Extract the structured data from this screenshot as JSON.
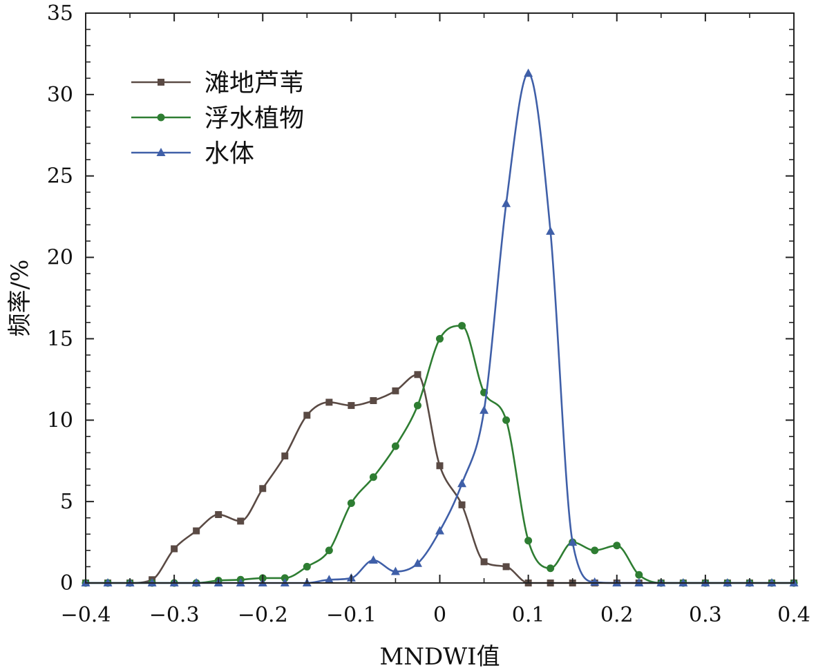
{
  "chart_data": {
    "type": "line",
    "xlabel": "MNDWI值",
    "ylabel": "频率/%",
    "xlim": [
      -0.4,
      0.4
    ],
    "ylim": [
      0,
      35
    ],
    "x_ticks": [
      -0.4,
      -0.3,
      -0.2,
      -0.1,
      0,
      0.1,
      0.2,
      0.3,
      0.4
    ],
    "x_tick_labels": [
      "−0.4",
      "−0.3",
      "−0.2",
      "−0.1",
      "0",
      "0.1",
      "0.2",
      "0.3",
      "0.4"
    ],
    "y_ticks": [
      0,
      5,
      10,
      15,
      20,
      25,
      30,
      35
    ],
    "y_tick_labels": [
      "0",
      "5",
      "10",
      "15",
      "20",
      "25",
      "30",
      "35"
    ],
    "grid": false,
    "legend_position": "top-left",
    "series": [
      {
        "name": "滩地芦苇",
        "color": "#5a4a44",
        "marker": "square",
        "points": [
          [
            -0.4,
            0
          ],
          [
            -0.375,
            0
          ],
          [
            -0.35,
            0
          ],
          [
            -0.325,
            0.2
          ],
          [
            -0.3,
            2.1
          ],
          [
            -0.275,
            3.2
          ],
          [
            -0.25,
            4.2
          ],
          [
            -0.225,
            3.8
          ],
          [
            -0.2,
            5.8
          ],
          [
            -0.175,
            7.8
          ],
          [
            -0.15,
            10.3
          ],
          [
            -0.125,
            11.1
          ],
          [
            -0.1,
            10.9
          ],
          [
            -0.075,
            11.2
          ],
          [
            -0.05,
            11.8
          ],
          [
            -0.025,
            12.8
          ],
          [
            0,
            7.2
          ],
          [
            0.025,
            4.8
          ],
          [
            0.05,
            1.3
          ],
          [
            0.075,
            1.0
          ],
          [
            0.1,
            0
          ],
          [
            0.125,
            0
          ],
          [
            0.15,
            0
          ],
          [
            0.175,
            0
          ],
          [
            0.2,
            0
          ],
          [
            0.225,
            0
          ],
          [
            0.25,
            0
          ],
          [
            0.275,
            0
          ],
          [
            0.3,
            0
          ],
          [
            0.325,
            0
          ],
          [
            0.35,
            0
          ],
          [
            0.375,
            0
          ],
          [
            0.4,
            0
          ]
        ]
      },
      {
        "name": "浮水植物",
        "color": "#2e7d32",
        "marker": "circle",
        "points": [
          [
            -0.4,
            0
          ],
          [
            -0.375,
            0
          ],
          [
            -0.35,
            0
          ],
          [
            -0.325,
            0
          ],
          [
            -0.3,
            0
          ],
          [
            -0.275,
            0
          ],
          [
            -0.25,
            0.15
          ],
          [
            -0.225,
            0.2
          ],
          [
            -0.2,
            0.3
          ],
          [
            -0.175,
            0.3
          ],
          [
            -0.15,
            1.0
          ],
          [
            -0.125,
            2.0
          ],
          [
            -0.1,
            4.9
          ],
          [
            -0.075,
            6.5
          ],
          [
            -0.05,
            8.4
          ],
          [
            -0.025,
            10.9
          ],
          [
            0,
            15.0
          ],
          [
            0.025,
            15.8
          ],
          [
            0.05,
            11.7
          ],
          [
            0.075,
            10.0
          ],
          [
            0.1,
            2.6
          ],
          [
            0.125,
            0.9
          ],
          [
            0.15,
            2.5
          ],
          [
            0.175,
            2.0
          ],
          [
            0.2,
            2.3
          ],
          [
            0.225,
            0.5
          ],
          [
            0.25,
            0
          ],
          [
            0.275,
            0
          ],
          [
            0.3,
            0
          ],
          [
            0.325,
            0
          ],
          [
            0.35,
            0
          ],
          [
            0.375,
            0
          ],
          [
            0.4,
            0
          ]
        ]
      },
      {
        "name": "水体",
        "color": "#3f5fa8",
        "marker": "triangle",
        "points": [
          [
            -0.4,
            0
          ],
          [
            -0.375,
            0
          ],
          [
            -0.35,
            0
          ],
          [
            -0.325,
            0
          ],
          [
            -0.3,
            0
          ],
          [
            -0.275,
            0
          ],
          [
            -0.25,
            0
          ],
          [
            -0.225,
            0
          ],
          [
            -0.2,
            0
          ],
          [
            -0.175,
            0
          ],
          [
            -0.15,
            0
          ],
          [
            -0.125,
            0.2
          ],
          [
            -0.1,
            0.3
          ],
          [
            -0.075,
            1.4
          ],
          [
            -0.05,
            0.7
          ],
          [
            -0.025,
            1.2
          ],
          [
            0,
            3.2
          ],
          [
            0.025,
            6.1
          ],
          [
            0.05,
            10.6
          ],
          [
            0.075,
            23.3
          ],
          [
            0.1,
            31.3
          ],
          [
            0.125,
            21.6
          ],
          [
            0.15,
            2.5
          ],
          [
            0.175,
            0.05
          ],
          [
            0.2,
            0
          ],
          [
            0.225,
            0
          ],
          [
            0.25,
            0
          ],
          [
            0.275,
            0
          ],
          [
            0.3,
            0
          ],
          [
            0.325,
            0
          ],
          [
            0.35,
            0
          ],
          [
            0.375,
            0
          ],
          [
            0.4,
            0
          ]
        ]
      }
    ]
  }
}
